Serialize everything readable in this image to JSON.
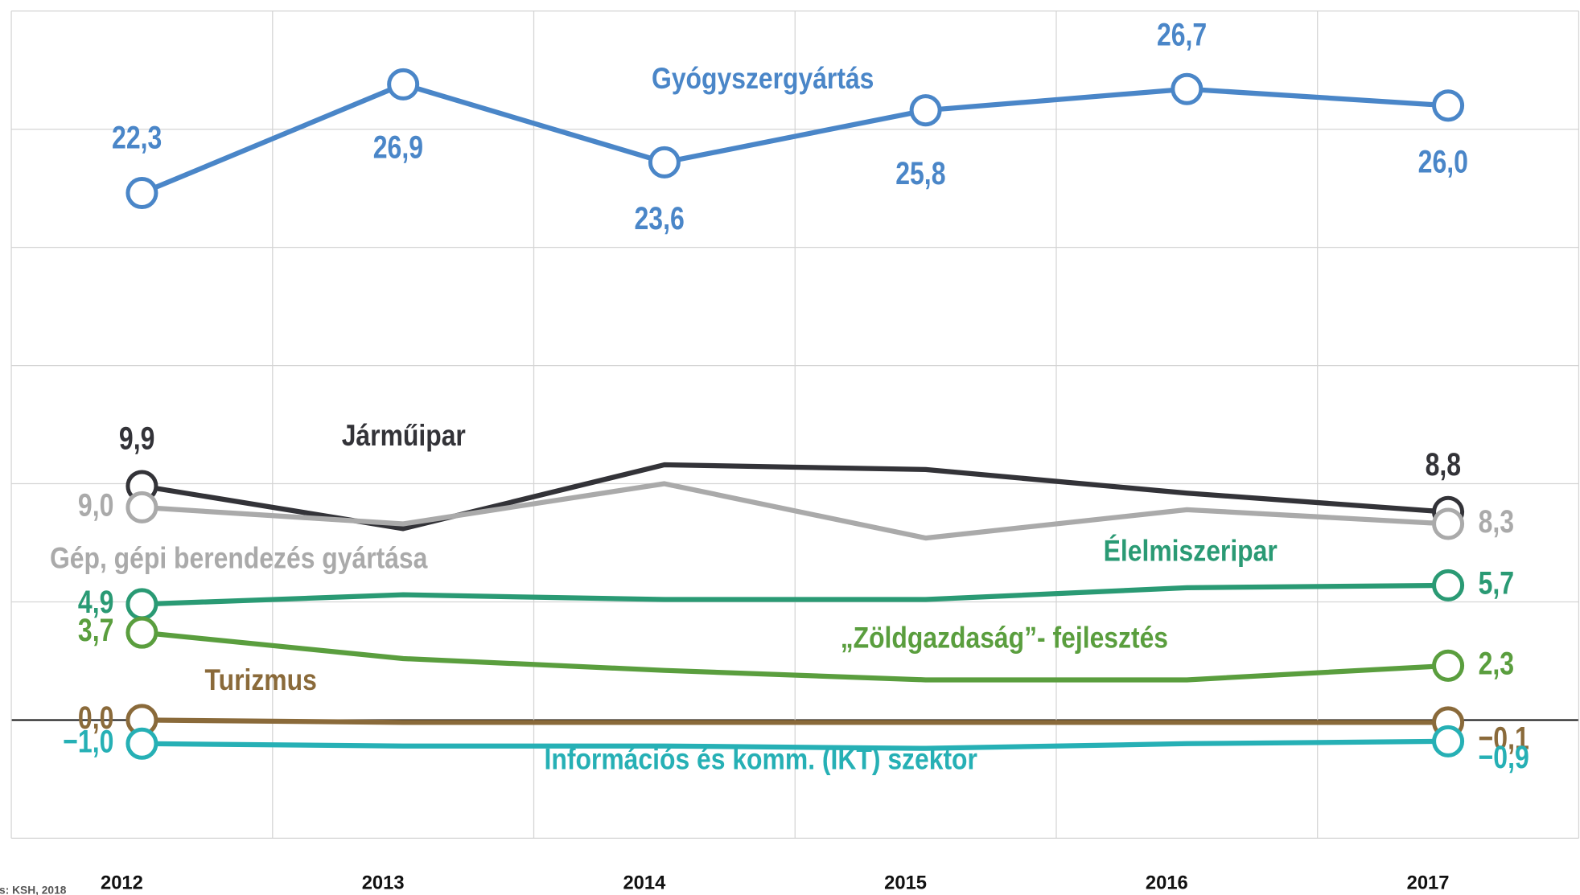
{
  "chart_data": {
    "type": "line",
    "categories": [
      "2012",
      "2013",
      "2014",
      "2015",
      "2016",
      "2017"
    ],
    "ylim": [
      -5,
      30
    ],
    "yticks": [
      -5,
      0,
      5,
      10,
      15,
      20,
      25,
      30
    ],
    "grid": true,
    "source": "s: KSH, 2018",
    "series": [
      {
        "name": "Gyógyszergyártás",
        "color": "#4a86c8",
        "values": [
          22.3,
          26.9,
          23.6,
          25.8,
          26.7,
          26.0
        ],
        "value_labels": [
          "22,3",
          "26,9",
          "23,6",
          "25,8",
          "26,7",
          "26,0"
        ]
      },
      {
        "name": "Járműipar",
        "color": "#333338",
        "values": [
          9.9,
          8.1,
          10.8,
          10.6,
          9.6,
          8.8
        ],
        "value_labels": [
          "9,9",
          null,
          null,
          null,
          null,
          "8,8"
        ]
      },
      {
        "name": "Gép, gépi berendezés gyártása",
        "color": "#aaaaaa",
        "values": [
          9.0,
          8.3,
          10.0,
          7.7,
          8.9,
          8.3
        ],
        "value_labels": [
          "9,0",
          null,
          null,
          null,
          null,
          "8,3"
        ]
      },
      {
        "name": "Élelmiszeripar",
        "color": "#2a9a74",
        "values": [
          4.9,
          5.3,
          5.1,
          5.1,
          5.6,
          5.7
        ],
        "value_labels": [
          "4,9",
          null,
          null,
          null,
          null,
          "5,7"
        ]
      },
      {
        "name": "„Zöldgazdaság”- fejlesztés",
        "color": "#5a9e3e",
        "values": [
          3.7,
          2.6,
          2.1,
          1.7,
          1.7,
          2.3
        ],
        "value_labels": [
          "3,7",
          null,
          null,
          null,
          null,
          "2,3"
        ]
      },
      {
        "name": "Turizmus",
        "color": "#8a6a3a",
        "values": [
          0.0,
          -0.1,
          -0.1,
          -0.1,
          -0.1,
          -0.1
        ],
        "value_labels": [
          "0,0",
          null,
          null,
          null,
          null,
          "−0,1"
        ]
      },
      {
        "name": "Információs és komm. (IKT) szektor",
        "color": "#26b0b5",
        "values": [
          -1.0,
          -1.1,
          -1.1,
          -1.2,
          -1.0,
          -0.9
        ],
        "value_labels": [
          "−1,0",
          null,
          null,
          null,
          null,
          "−0,9"
        ]
      }
    ]
  }
}
